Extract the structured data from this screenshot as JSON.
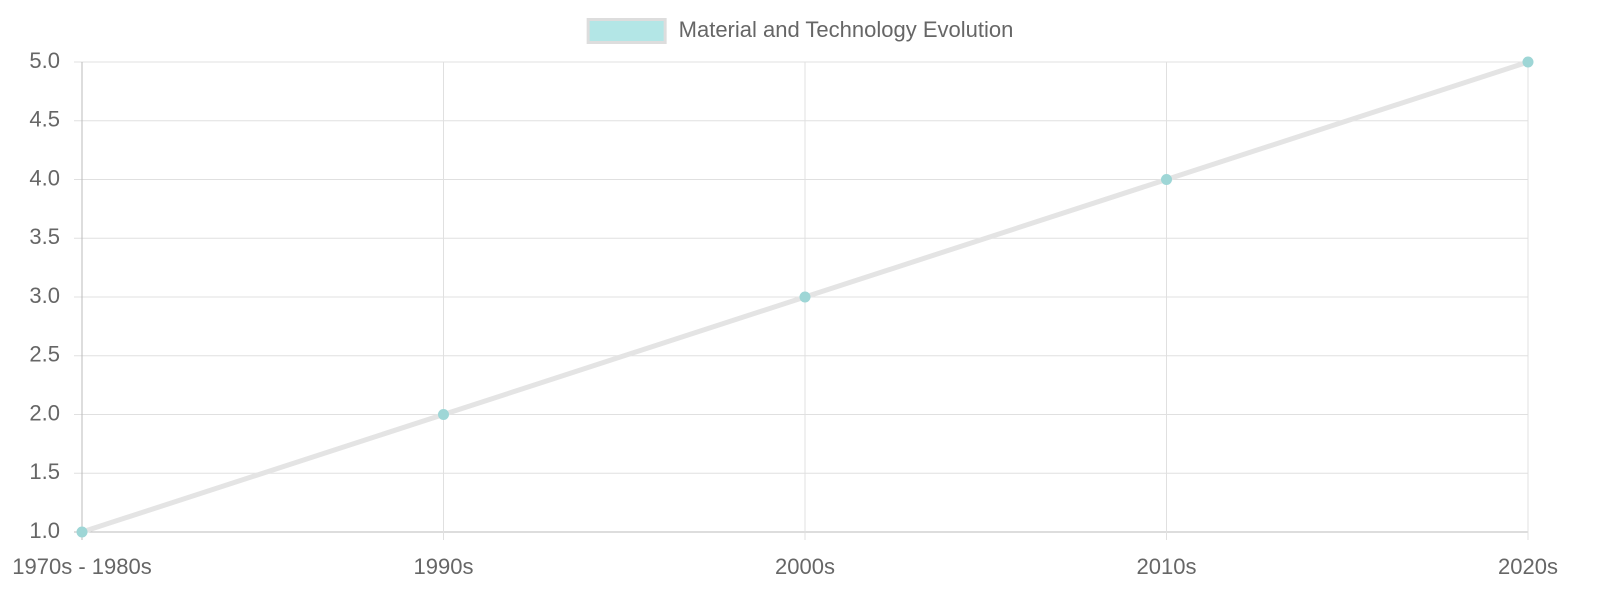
{
  "chart_data": {
    "type": "line",
    "categories": [
      "1970s - 1980s",
      "1990s",
      "2000s",
      "2010s",
      "2020s"
    ],
    "series": [
      {
        "name": "Material and Technology Evolution",
        "color": "#b3e6e6",
        "line_color": "#e4e4e4",
        "point_color": "#9ed6d6",
        "values": [
          1,
          2,
          3,
          4,
          5
        ]
      }
    ],
    "ylim": [
      1,
      5
    ],
    "yticks": [
      {
        "value": 1,
        "label": "1.0"
      },
      1.5,
      {
        "value": 2,
        "label": "2.0"
      },
      2.5,
      {
        "value": 3,
        "label": "3.0"
      },
      3.5,
      {
        "value": 4,
        "label": "4.0"
      },
      4.5,
      {
        "value": 5,
        "label": "5.0"
      }
    ],
    "grid": true,
    "legend": "top"
  }
}
